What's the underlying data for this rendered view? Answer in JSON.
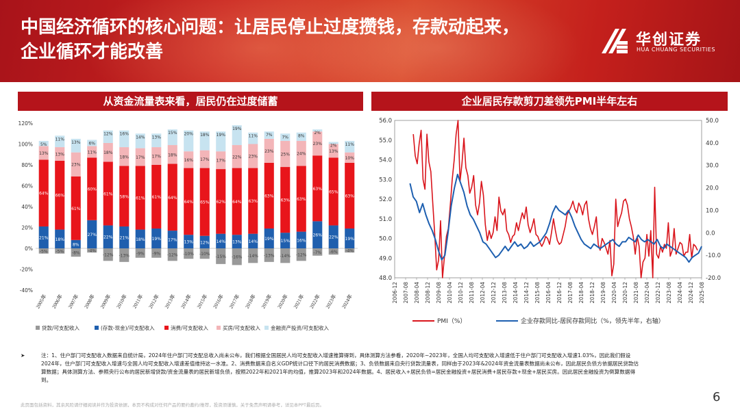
{
  "header": {
    "title_line1": "中国经济循环的核心问题：让居民停止过度攒钱，存款动起来，",
    "title_line2": "企业循环才能改善",
    "logo_name": "华创证券",
    "logo_sub": "HUA CHUANG SECURITIES"
  },
  "left_panel": {
    "title": "从资金流量表来看，居民仍在过度储蓄"
  },
  "right_panel": {
    "title": "企业居民存款剪刀差领先PMI半年左右"
  },
  "chart_data": [
    {
      "type": "bar",
      "stacked": true,
      "categories": [
        "2005年",
        "2006年",
        "2007年",
        "2008年",
        "2009年",
        "2010年",
        "2011年",
        "2012年",
        "2013年",
        "2014年",
        "2015年",
        "2016年",
        "2017年",
        "2018年",
        "2019年",
        "2020年",
        "2021年",
        "2022年",
        "2023年",
        "2024年"
      ],
      "ylim": [
        -40,
        120
      ],
      "yticks": [
        "-40%",
        "-20%",
        "0%",
        "20%",
        "40%",
        "60%",
        "80%",
        "100%",
        "120%"
      ],
      "series": [
        {
          "name": "贷款/可支配收入",
          "color": "#999999",
          "values": [
            -5,
            -5,
            -8,
            -4,
            -12,
            -13,
            -9,
            -9,
            -12,
            -10,
            -10,
            -15,
            -16,
            -14,
            -13,
            -14,
            -12,
            -7,
            -6,
            -4
          ]
        },
        {
          "name": "(存款-现金)/可支配收入",
          "color": "#1f5fae",
          "values": [
            21,
            18,
            8,
            27,
            22,
            21,
            18,
            19,
            17,
            13,
            12,
            14,
            13,
            14,
            19,
            15,
            16,
            26,
            22,
            19
          ]
        },
        {
          "name": "消费/可支配收入",
          "color": "#e8151b",
          "values": [
            64,
            66,
            61,
            60,
            61,
            58,
            61,
            61,
            64,
            64,
            65,
            62,
            64,
            63,
            63,
            63,
            63,
            63,
            65,
            63
          ]
        },
        {
          "name": "买房/可支配收入",
          "color": "#f3b5b8",
          "values": [
            13,
            13,
            23,
            11,
            18,
            18,
            17,
            17,
            18,
            16,
            17,
            17,
            22,
            23,
            23,
            25,
            24,
            23,
            13,
            10
          ]
        },
        {
          "name": "金融资产投资/可支配收入",
          "color": "#c7e3f0",
          "values": [
            5,
            11,
            13,
            6,
            12,
            16,
            14,
            13,
            15,
            20,
            18,
            19,
            19,
            11,
            7,
            7,
            8,
            2,
            2,
            11
          ]
        }
      ],
      "labels": [
        [
          "-5%",
          "-5%",
          "-8%",
          "-4%",
          "-12%",
          "-13%",
          "-9%",
          "-9%",
          "-12%",
          "-10%",
          "-10%",
          "-15%",
          "-16%",
          "-14%",
          "-13%",
          "-14%",
          "-12%",
          "-7%",
          "-6%",
          "-4%"
        ],
        [
          "21%",
          "18%",
          "8%",
          "27%",
          "22%",
          "21%",
          "18%",
          "19%",
          "17%",
          "13%",
          "12%",
          "14%",
          "13%",
          "14%",
          "19%",
          "15%",
          "16%",
          "26%",
          "22%",
          "19%"
        ],
        [
          "64%",
          "66%",
          "61%",
          "60%",
          "61%",
          "58%",
          "61%",
          "61%",
          "64%",
          "64%",
          "65%",
          "62%",
          "64%",
          "63%",
          "63%",
          "63%",
          "63%",
          "63%",
          "65%",
          "63%"
        ],
        [
          "13%",
          "13%",
          "23%",
          "11%",
          "18%",
          "18%",
          "17%",
          "17%",
          "18%",
          "16%",
          "17%",
          "17%",
          "22%",
          "23%",
          "23%",
          "25%",
          "24%",
          "23%",
          "13%",
          "10%"
        ],
        [
          "5%",
          "11%",
          "13%",
          "6%",
          "12%",
          "16%",
          "14%",
          "13%",
          "15%",
          "20%",
          "18%",
          "19%",
          "19%",
          "11%",
          "7%",
          "7%",
          "8%",
          "2%",
          "2%",
          "11%"
        ]
      ],
      "legend": [
        "贷款/可支配收入",
        "(存款-现金)/可支配收入",
        "消费/可支配收入",
        "买房/可支配收入",
        "金融资产投资/可支配收入"
      ]
    },
    {
      "type": "line",
      "xticks": [
        "2006-12",
        "2007-08",
        "2008-04",
        "2008-12",
        "2009-08",
        "2010-04",
        "2010-12",
        "2011-08",
        "2012-04",
        "2012-12",
        "2013-08",
        "2014-04",
        "2014-12",
        "2015-08",
        "2016-04",
        "2016-12",
        "2017-08",
        "2018-04",
        "2018-12",
        "2019-08",
        "2020-04",
        "2020-12",
        "2021-08",
        "2022-04",
        "2022-12",
        "2023-08",
        "2024-04",
        "2024-12",
        "2025-08"
      ],
      "ylim_left": [
        48,
        56
      ],
      "yticks_left": [
        "48.0",
        "49.0",
        "50.0",
        "51.0",
        "52.0",
        "53.0",
        "54.0",
        "55.0",
        "56.0"
      ],
      "ylim_right": [
        -20,
        50
      ],
      "yticks_right": [
        "-20.0",
        "-10.0",
        "0.0",
        "10.0",
        "20.0",
        "30.0",
        "40.0",
        "50.0"
      ],
      "series": [
        {
          "name": "PMI（%）",
          "axis": "left",
          "color": "#d9141b",
          "values": [
            55.3,
            54.2,
            53.8,
            54.8,
            55.5,
            53.0,
            52.5,
            55.3,
            53.9,
            53.4,
            51.8,
            50.2,
            48.4,
            48.9,
            50.9,
            45.8,
            49.1,
            50.1,
            50.5,
            51.7,
            53.0,
            54.0,
            55.3,
            56.0,
            52.9,
            53.8,
            55.1,
            53.6,
            53.2,
            52.3,
            52.6,
            53.2,
            51.7,
            51.2,
            51.8,
            52.9,
            52.2,
            50.7,
            49.9,
            50.4,
            50.0,
            50.3,
            51.1,
            50.4,
            52.1,
            51.4,
            51.2,
            51.5,
            50.4,
            50.2,
            49.8,
            50.1,
            50.2,
            50.8,
            50.4,
            50.9,
            51.3,
            51.0,
            51.6,
            50.7,
            50.3,
            50.6,
            51.0,
            50.2,
            50.1,
            49.8,
            49.6,
            49.8,
            50.1,
            50.0,
            49.7,
            50.3,
            51.0,
            50.4,
            49.9,
            49.7,
            49.8,
            50.2,
            50.6,
            51.2,
            51.4,
            51.6,
            51.9,
            51.5,
            51.3,
            51.8,
            51.6,
            51.2,
            51.7,
            51.9,
            51.0,
            50.5,
            50.2,
            50.6,
            51.1,
            49.7,
            49.4,
            50.0,
            49.8,
            49.5,
            49.2,
            49.9,
            48.1,
            48.7,
            52.0,
            50.6,
            51.0,
            51.3,
            51.9,
            52.0,
            51.7,
            51.0,
            50.6,
            50.1,
            49.2,
            50.1,
            49.6,
            47.4,
            48.8,
            49.0,
            50.2,
            49.1,
            50.4,
            48.0,
            52.6,
            49.2,
            49.0,
            49.6,
            49.3,
            49.7,
            49.5,
            50.8,
            49.1,
            49.4,
            50.5,
            49.2,
            49.5,
            49.8,
            49.7,
            49.1,
            49.3,
            49.3,
            50.2,
            49.0,
            49.7,
            49.6,
            49.4
          ]
        },
        {
          "name": "企业存款同比-居民存款同比（%，领先半年，右轴）",
          "axis": "right",
          "color": "#1d5fb0",
          "values": [
            22,
            16,
            14,
            9,
            13,
            8,
            4,
            1,
            -3,
            -8,
            -12,
            -10,
            0,
            12,
            20,
            26,
            22,
            18,
            12,
            8,
            6,
            3,
            0,
            -4,
            -5,
            -7,
            -9,
            -11,
            -10,
            -8,
            -6,
            -8,
            -6,
            -4,
            -6,
            -5,
            -7,
            -6,
            -4,
            -6,
            -5,
            -4,
            -2,
            0,
            4,
            9,
            12,
            10,
            9,
            8,
            10,
            7,
            3,
            0,
            -3,
            -5,
            -6,
            -7,
            -5,
            -6,
            -7,
            -6,
            -5,
            -4,
            -3,
            -5,
            -6,
            -4,
            -4,
            -2,
            -3,
            -4,
            -1,
            -3,
            -4,
            -3,
            -4,
            -5,
            -3,
            -6,
            -7,
            -5,
            -6,
            -7,
            -8,
            -9,
            -10,
            -11,
            -13,
            -11,
            -10,
            -9,
            -6
          ]
        }
      ],
      "legend": [
        "PMI（%）",
        "企业存款同比-居民存款同比（%，领先半年，右轴）"
      ]
    }
  ],
  "notes": {
    "arrow": "➤",
    "text": "注：1、住户部门可支配收入数据来自统计局，2024年住户部门可支配总收入尚未公布，我们根据全国居民人均可支配收入增速推算得到，具体测算方法参看，2020年~2023年，全国人均可支配收入增速低于住户部门可支配收入增速1.03%，因此我们假设2024年，住户部门可支配收入增速与全国人均可支配收入增速差值维持这一水准。2、消费数据来自名义GDP统计口径下的居民消费数据；3、负债数据来自央行贷款流量表，同样由于2023年&2024年资金流量表数据尚未公布，因此居民负债方依据居民贷款估算数据；具体测算方法、参照央行公布的居民新增贷款/资金流量表的居民新增负债，按照2022年和2021年的均值，推算2023年和2024年数据。4、居民收入+居民负债=居民金融投资+居民消费+居民存款+现金+居民买房。因此居民金融投资为倒算数据得到。",
    "disclaimer": "此页面包括资料，其余风险请仔细阅读并作为投资依据，本页不构成对任何产品的要约邀约/推荐，投资须谨慎，关于免责声明请参考，详见本PPT最后页。"
  },
  "page_number": "6"
}
